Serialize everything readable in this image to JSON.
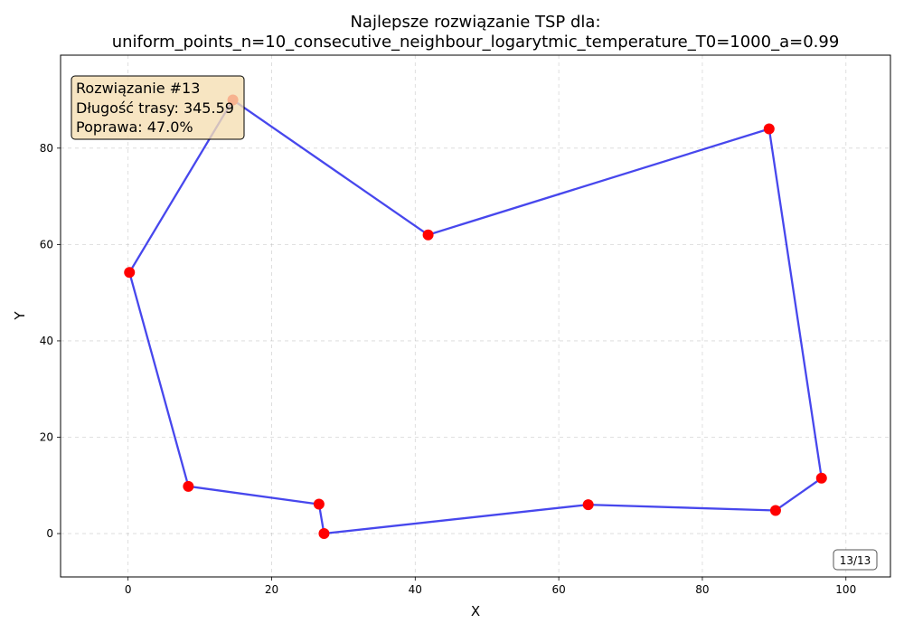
{
  "chart_data": {
    "type": "line",
    "title_line1": "Najlepsze rozwiązanie TSP dla:",
    "title_line2": "uniform_points_n=10_consecutive_neighbour_logarytmic_temperature_T0=1000_a=0.99",
    "xlabel": "X",
    "ylabel": "Y",
    "xlim": [
      -9.4,
      106.2
    ],
    "ylim": [
      -9.0,
      99.3
    ],
    "xticks": [
      0,
      20,
      40,
      60,
      80,
      100
    ],
    "yticks": [
      0,
      20,
      40,
      60,
      80
    ],
    "grid": true,
    "points": [
      {
        "x": 14.6,
        "y": 90.0
      },
      {
        "x": 41.8,
        "y": 62.0
      },
      {
        "x": 89.3,
        "y": 84.0
      },
      {
        "x": 96.6,
        "y": 11.5
      },
      {
        "x": 90.2,
        "y": 4.8
      },
      {
        "x": 64.1,
        "y": 6.0
      },
      {
        "x": 27.3,
        "y": 0.0
      },
      {
        "x": 26.6,
        "y": 6.1
      },
      {
        "x": 8.4,
        "y": 9.8
      },
      {
        "x": 0.2,
        "y": 54.2
      }
    ],
    "tour_closed": true,
    "info_box": {
      "line1": "Rozwiązanie #13",
      "line2": "Długość trasy: 345.59",
      "line3": "Poprawa: 47.0%"
    },
    "counter": "13/13"
  },
  "colors": {
    "line": "#0000e6",
    "point": "#ff0000",
    "info_bg": "#f5deb3",
    "frame": "#000000"
  }
}
